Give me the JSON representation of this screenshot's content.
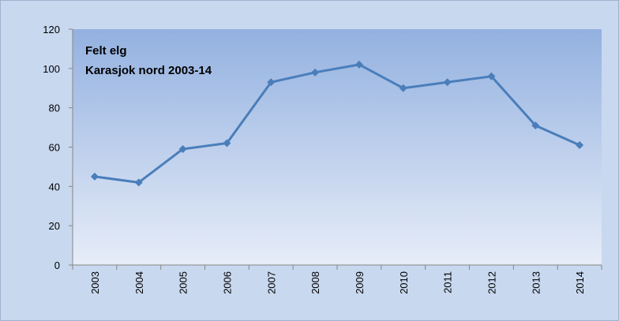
{
  "chart_data": {
    "type": "line",
    "title": "Felt elg",
    "subtitle": "Karasjok nord 2003-14",
    "categories": [
      "2003",
      "2004",
      "2005",
      "2006",
      "2007",
      "2008",
      "2009",
      "2010",
      "2011",
      "2012",
      "2013",
      "2014"
    ],
    "values": [
      45,
      42,
      59,
      62,
      93,
      98,
      102,
      90,
      93,
      96,
      71,
      61
    ],
    "color": "#4a7ebb",
    "ylim": [
      0,
      120
    ],
    "yticks": [
      0,
      20,
      40,
      60,
      80,
      100,
      120
    ],
    "grid": false
  }
}
